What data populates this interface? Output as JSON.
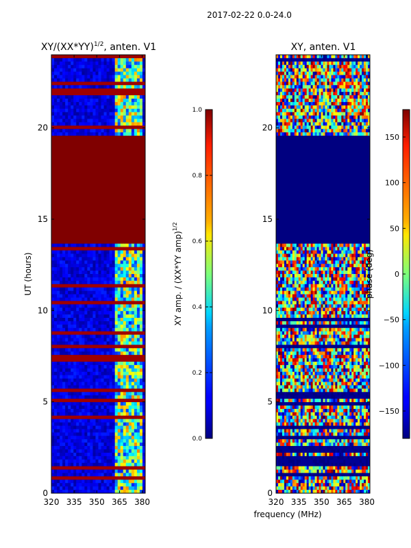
{
  "figure_title": "2017-02-22 0.0-24.0",
  "shared_xlabel": "frequency (MHz)",
  "colors": {
    "heat_high": "#800000",
    "heat_low": "#000080",
    "bg": "#ffffff"
  },
  "chart_data": [
    {
      "type": "heatmap",
      "title": "XY/(XX*YY)",
      "title_sup": "1/2",
      "title_suffix": ", anten. V1",
      "xlabel": "",
      "ylabel": "UT (hours)",
      "xlim": [
        320,
        382
      ],
      "ylim": [
        0,
        24
      ],
      "xticks": [
        320,
        335,
        350,
        365,
        380
      ],
      "yticks": [
        0,
        5,
        10,
        15,
        20
      ],
      "colorbar": {
        "label": "XY amp. / (XX*YY amp)",
        "label_sup": "1/2",
        "range": [
          0.0,
          1.0
        ],
        "ticks": [
          "0.0",
          "0.2",
          "0.4",
          "0.6",
          "0.8",
          "1.0"
        ],
        "colormap": "jet"
      },
      "saturated_band_hours": [
        13.7,
        19.5
      ],
      "saturated_value": 1.0,
      "active_freq_range_mhz": [
        362,
        380
      ],
      "background_value": 0.1
    },
    {
      "type": "heatmap",
      "title": "XY, anten. V1",
      "xlabel": "",
      "ylabel": "",
      "xlim": [
        320,
        382
      ],
      "ylim": [
        0,
        24
      ],
      "xticks": [
        320,
        335,
        350,
        365,
        380
      ],
      "yticks": [
        0,
        5,
        10,
        15,
        20
      ],
      "colorbar": {
        "label": "phase (deg)",
        "range": [
          -180,
          180
        ],
        "ticks": [
          "150",
          "100",
          "50",
          "0",
          "−50",
          "−100",
          "−150"
        ],
        "colormap": "jet"
      },
      "flat_band_hours": [
        13.7,
        19.5
      ],
      "flat_value_deg": -180,
      "active_freq_range_mhz": [
        320,
        382
      ]
    }
  ]
}
